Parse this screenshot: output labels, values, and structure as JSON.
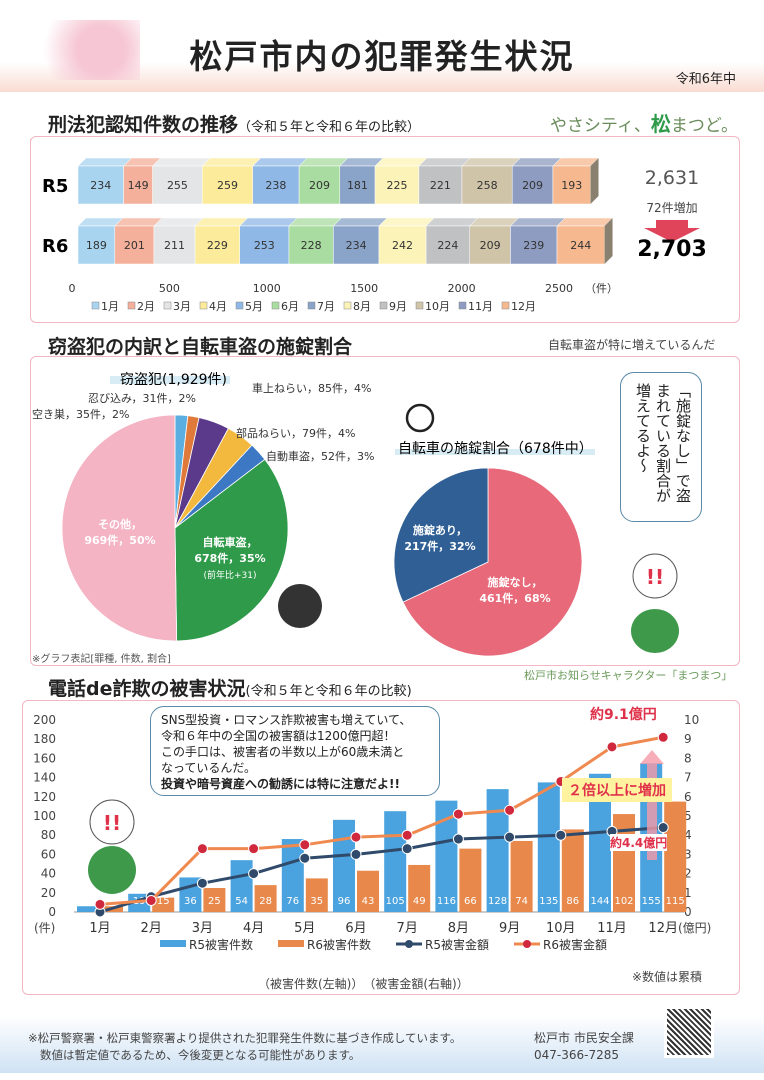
{
  "header": {
    "title": "松戸市内の犯罪発生状況",
    "year": "令和6年中",
    "logo_pre": "やさシティ、",
    "logo_mark": "松",
    "logo_post": "まつど。"
  },
  "section1": {
    "heading": "刑法犯認知件数の推移",
    "sub": "（令和５年と令和６年の比較）",
    "months": [
      "1月",
      "2月",
      "3月",
      "4月",
      "5月",
      "6月",
      "7月",
      "8月",
      "9月",
      "10月",
      "11月",
      "12月"
    ],
    "colors": [
      "#a9d4f0",
      "#f4b09a",
      "#e3e5e7",
      "#fbeb9a",
      "#8fb8e6",
      "#a9dca0",
      "#8aa3c8",
      "#fbf3b8",
      "#bfc1c3",
      "#cfc4a8",
      "#8d9cc0",
      "#f6b98f"
    ],
    "rows": [
      {
        "label": "R5",
        "values": [
          234,
          149,
          255,
          259,
          238,
          209,
          181,
          225,
          221,
          258,
          209,
          193
        ]
      },
      {
        "label": "R6",
        "values": [
          189,
          201,
          211,
          229,
          253,
          228,
          234,
          242,
          224,
          209,
          239,
          244
        ]
      }
    ],
    "axis_ticks": [
      "0",
      "500",
      "1000",
      "1500",
      "2000",
      "2500"
    ],
    "axis_max": 2500,
    "unit": "（件）",
    "total_r5": "2,631",
    "increase": "72件増加",
    "total_r6": "2,703"
  },
  "section2": {
    "heading": "窃盗犯の内訳と自転車盗の施錠割合",
    "comment": "自転車盗が特に増えているんだ",
    "pie_title": "窃盗犯(1,929件)",
    "slices": [
      {
        "label": "空き巣，35件，2%",
        "value": 35,
        "color": "#5aaee0"
      },
      {
        "label": "忍び込み，31件，2%",
        "value": 31,
        "color": "#e07a3a"
      },
      {
        "label": "車上ねらい，85件，4%",
        "value": 85,
        "color": "#5b3a8c"
      },
      {
        "label": "部品ねらい，79件，4%",
        "value": 79,
        "color": "#f3b93f"
      },
      {
        "label": "自動車盗，52件，3%",
        "value": 52,
        "color": "#3d78c4"
      },
      {
        "label": "自転車盗，",
        "label2": "678件，35%",
        "label3": "(前年比+31)",
        "value": 678,
        "color": "#2f9a4a"
      },
      {
        "label": "その他，",
        "label2": "969件，50%",
        "value": 969,
        "color": "#f4b4c4"
      }
    ],
    "graph_note": "※グラフ表記[罪種, 件数, 割合]",
    "lock_title": "自転車の施錠割合（678件中）",
    "lock_slices": [
      {
        "label": "施錠なし，",
        "label2": "461件，68%",
        "value": 461,
        "color": "#e8697a"
      },
      {
        "label": "施錠あり，",
        "label2": "217件，32%",
        "value": 217,
        "color": "#2f5f94"
      }
    ],
    "bubble": "「施錠なし」で盗まれている割合が増えてるよ～",
    "character_caption": "松戸市お知らせキャラクター「まつまつ」"
  },
  "section3": {
    "heading": "電話de詐欺の被害状況",
    "sub": "(令和５年と令和６年の比較)",
    "bubble_lines": [
      "SNS型投資・ロマンス詐欺被害も増えていて、",
      "令和６年中の全国の被害額は1200億円超！",
      "この手口は、被害者の半数以上が60歳未満と",
      "なっているんだ。",
      "投資や暗号資産への勧誘には特に注意だよ!!"
    ],
    "badge": "２倍以上に増加",
    "r6_final": "約9.1億円",
    "r5_final": "約4.4億円",
    "left_unit": "(件)",
    "right_unit": "(億円)",
    "axis_note": "（被害件数(左軸)）　（被害金額(右軸)）",
    "cumulative_note": "※数値は累積"
  },
  "chart_data": {
    "type": "bar+line",
    "categories": [
      "1月",
      "2月",
      "3月",
      "4月",
      "5月",
      "6月",
      "7月",
      "8月",
      "9月",
      "10月",
      "11月",
      "12月"
    ],
    "ylim": [
      0,
      200
    ],
    "yticks": [
      0,
      20,
      40,
      60,
      80,
      100,
      120,
      140,
      160,
      180,
      200
    ],
    "y2lim": [
      0,
      10
    ],
    "y2ticks": [
      0,
      1,
      2,
      3,
      4,
      5,
      6,
      7,
      8,
      9,
      10
    ],
    "series": [
      {
        "name": "R5被害件数",
        "type": "bar",
        "axis": "left",
        "color": "#4aa3df",
        "values": [
          6,
          19,
          36,
          54,
          76,
          96,
          105,
          116,
          128,
          135,
          144,
          155
        ]
      },
      {
        "name": "R6被害件数",
        "type": "bar",
        "axis": "left",
        "color": "#e8884a",
        "values": [
          6,
          15,
          25,
          28,
          35,
          43,
          49,
          66,
          74,
          86,
          102,
          115
        ]
      },
      {
        "name": "R5被害金額",
        "type": "line",
        "axis": "right",
        "color": "#2f4a6a",
        "values": [
          0.0,
          0.8,
          1.5,
          2.0,
          2.8,
          3.0,
          3.3,
          3.8,
          3.9,
          4.0,
          4.2,
          4.4
        ]
      },
      {
        "name": "R6被害金額",
        "type": "line",
        "axis": "right",
        "color": "#f0894f",
        "marker": "#d0283c",
        "values": [
          0.4,
          0.6,
          3.3,
          3.3,
          3.5,
          3.9,
          4.0,
          5.1,
          5.3,
          6.8,
          8.6,
          9.1
        ]
      }
    ]
  },
  "footer": {
    "line1": "※松戸警察署・松戸東警察署より提供された犯罪発生件数に基づき作成しています。",
    "line2": "数値は暫定値であるため、今後変更となる可能性があります。",
    "dept": "松戸市 市民安全課",
    "phone": "047-366-7285"
  }
}
